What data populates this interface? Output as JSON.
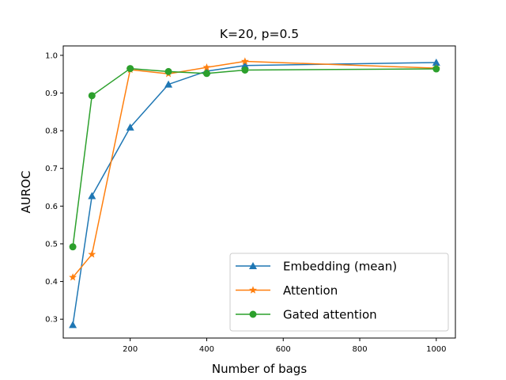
{
  "chart_data": {
    "type": "line",
    "title": "K=20, p=0.5",
    "xlabel": "Number of bags",
    "ylabel": "AUROC",
    "xlim": [
      25,
      1050
    ],
    "ylim": [
      0.25,
      1.025
    ],
    "xticks": [
      200,
      400,
      600,
      800,
      1000
    ],
    "yticks": [
      0.3,
      0.4,
      0.5,
      0.6,
      0.7,
      0.8,
      0.9,
      1.0
    ],
    "ytick_labels": [
      "0.3",
      "0.4",
      "0.5",
      "0.6",
      "0.7",
      "0.8",
      "0.9",
      "1.0"
    ],
    "legend_position": "bottom-right",
    "grid": false,
    "x": [
      50,
      100,
      200,
      300,
      400,
      500,
      1000
    ],
    "series": [
      {
        "name": "Embedding (mean)",
        "color": "#1f77b4",
        "marker": "triangle",
        "values": [
          0.285,
          0.627,
          0.809,
          0.923,
          0.958,
          0.973,
          0.981
        ]
      },
      {
        "name": "Attention",
        "color": "#ff7f0e",
        "marker": "star",
        "values": [
          0.411,
          0.472,
          0.962,
          0.951,
          0.968,
          0.984,
          0.966
        ]
      },
      {
        "name": "Gated attention",
        "color": "#2ca02c",
        "marker": "circle",
        "values": [
          0.492,
          0.893,
          0.965,
          0.957,
          0.952,
          0.961,
          0.964
        ]
      }
    ]
  }
}
